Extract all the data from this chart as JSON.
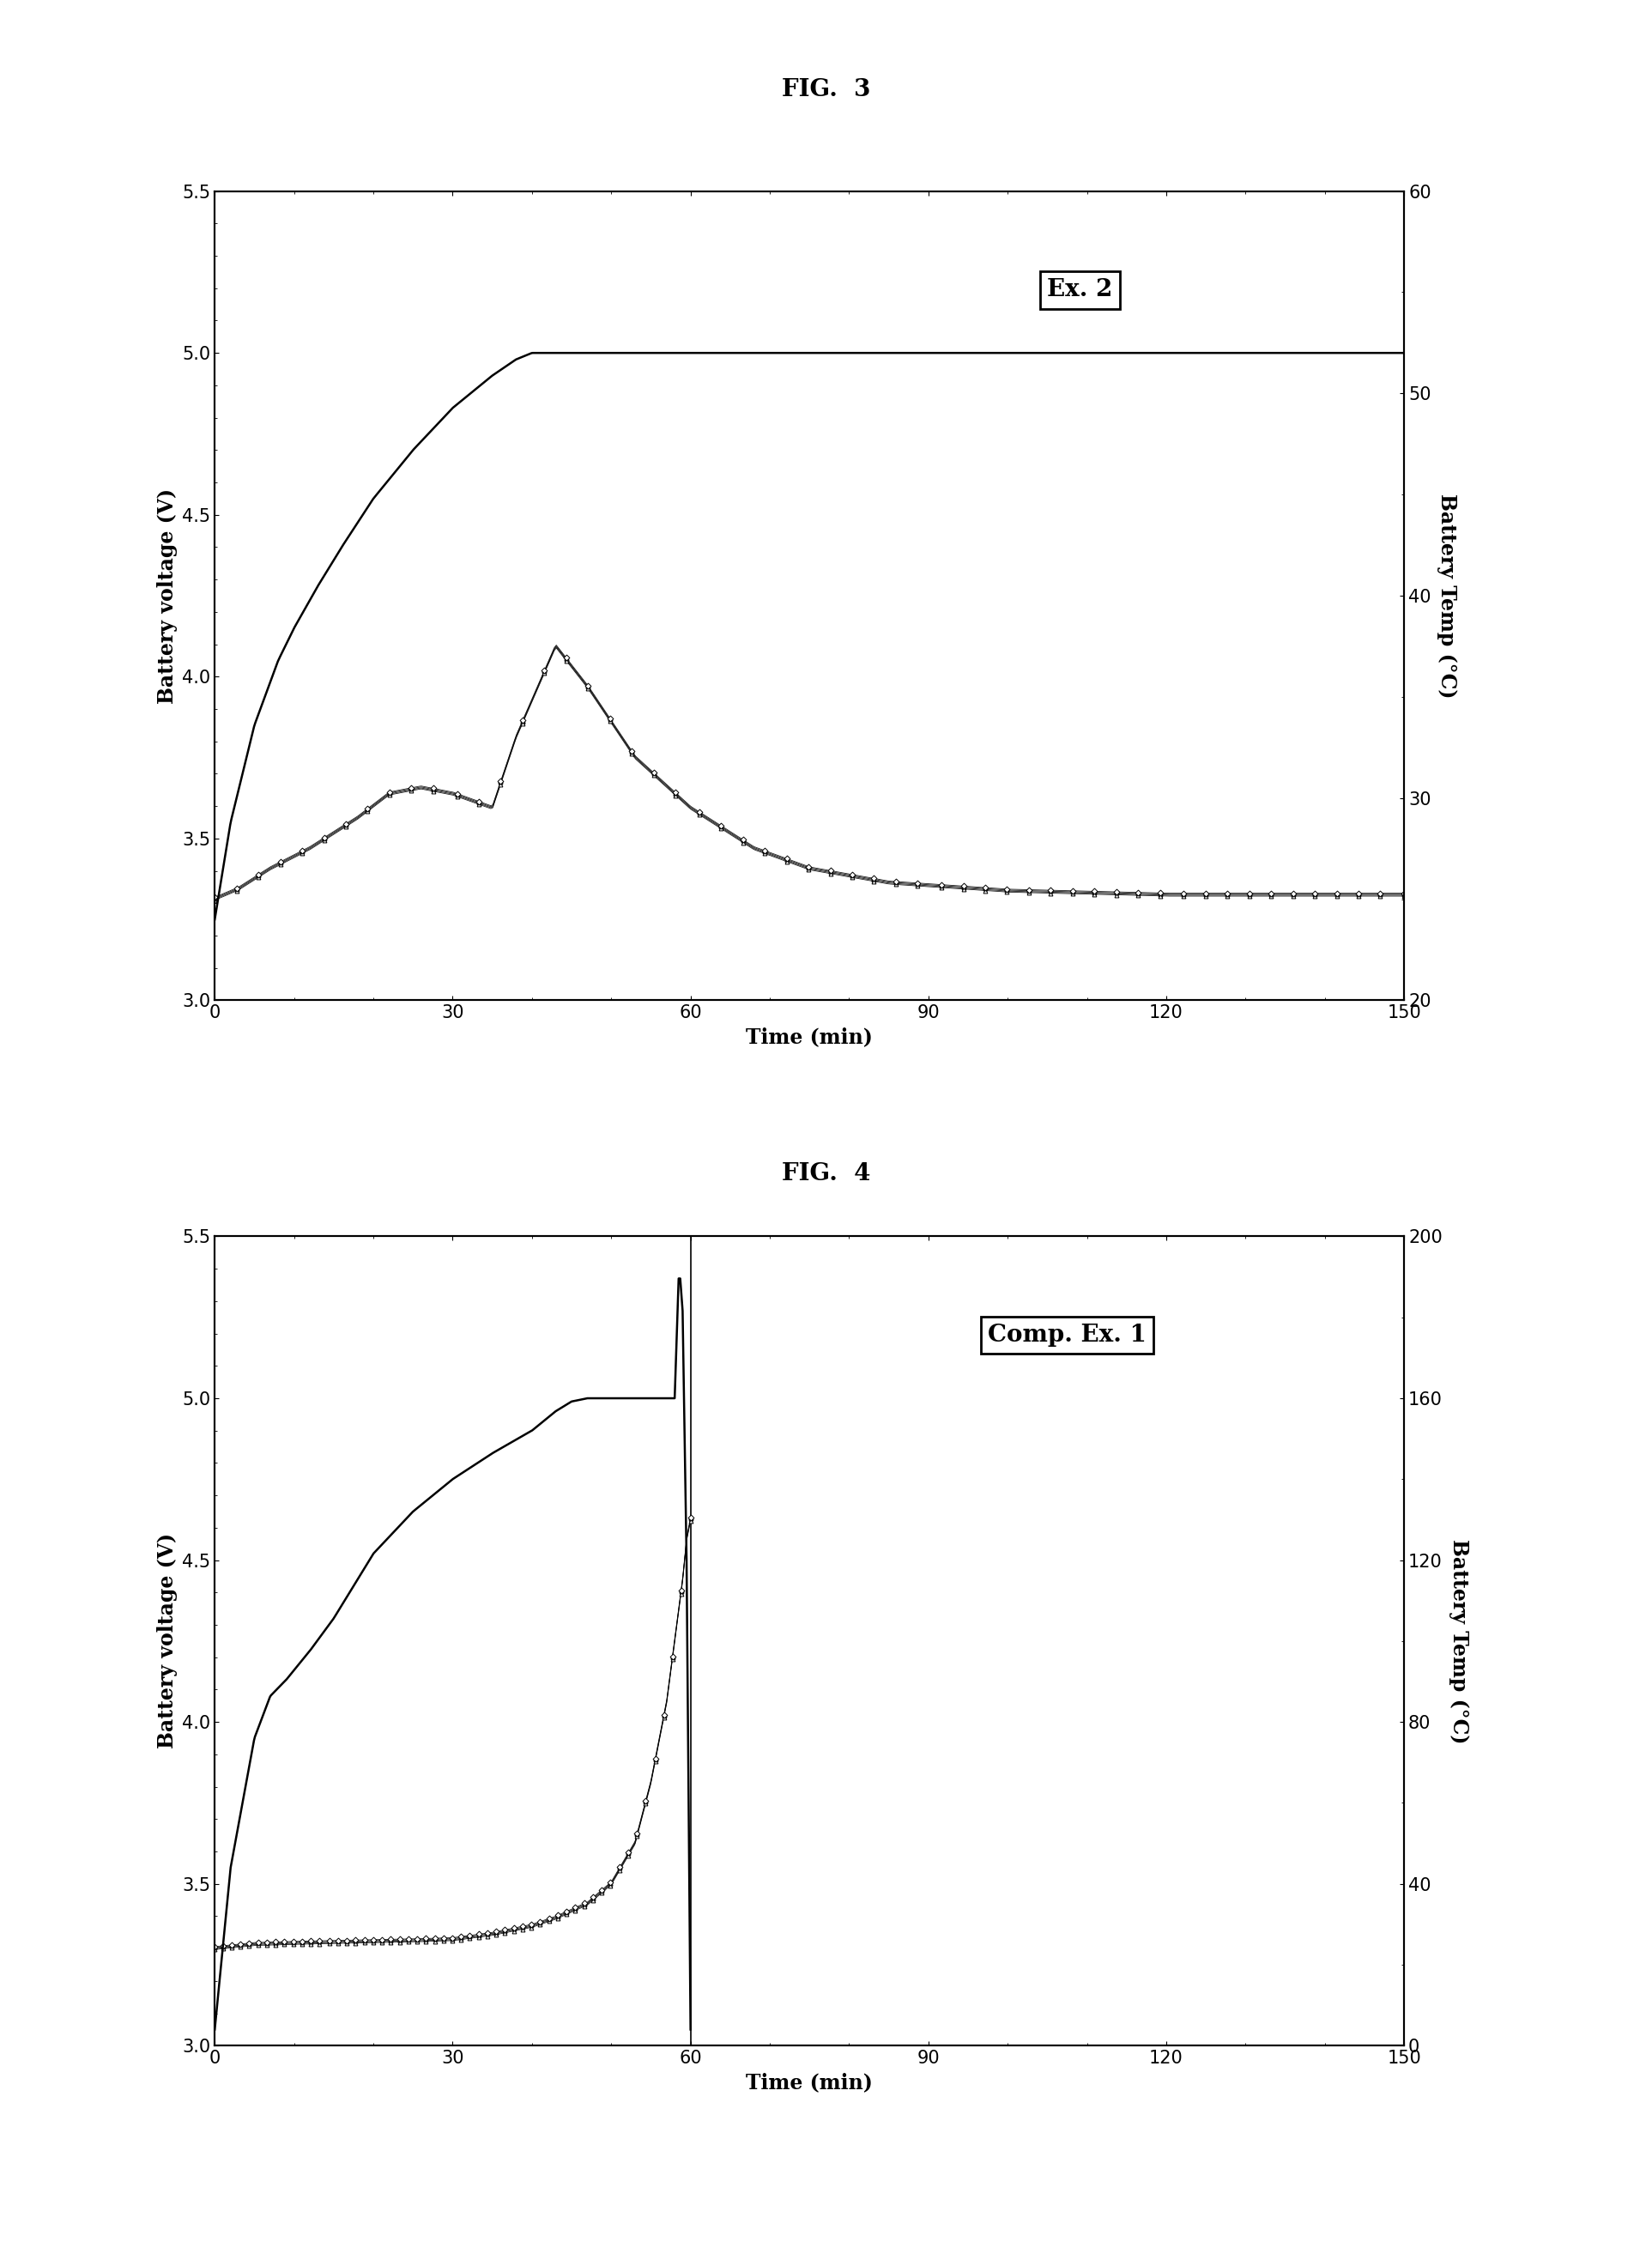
{
  "fig3": {
    "title": "FIG.  3",
    "label": "Ex. 2",
    "xlabel": "Time (min)",
    "ylabel_left": "Battery voltage (V)",
    "ylabel_right": "Battery Temp (°C)",
    "xlim": [
      0,
      150
    ],
    "ylim_left": [
      3.0,
      5.5
    ],
    "ylim_right": [
      20,
      60
    ],
    "xticks": [
      0,
      30,
      60,
      90,
      120,
      150
    ],
    "yticks_left": [
      3.0,
      3.5,
      4.0,
      4.5,
      5.0,
      5.5
    ],
    "yticks_right": [
      20,
      30,
      40,
      50,
      60
    ]
  },
  "fig4": {
    "title": "FIG.  4",
    "label": "Comp. Ex. 1",
    "xlabel": "Time (min)",
    "ylabel_left": "Battery voltage (V)",
    "ylabel_right": "Battery Temp (°C)",
    "xlim": [
      0,
      150
    ],
    "ylim_left": [
      3.0,
      5.5
    ],
    "ylim_right": [
      0,
      200
    ],
    "xticks": [
      0,
      30,
      60,
      90,
      120,
      150
    ],
    "yticks_left": [
      3.0,
      3.5,
      4.0,
      4.5,
      5.0,
      5.5
    ],
    "yticks_right": [
      0,
      40,
      80,
      120,
      160,
      200
    ]
  },
  "background_color": "#ffffff",
  "title_fontsize": 20,
  "label_fontsize": 17,
  "tick_fontsize": 15,
  "annotation_fontsize": 20
}
